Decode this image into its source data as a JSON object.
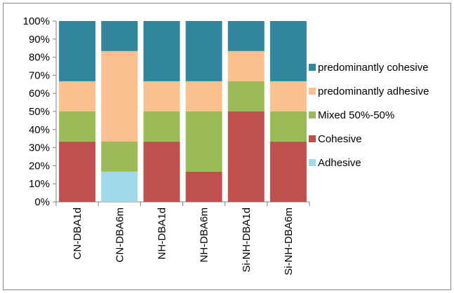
{
  "chart_data": {
    "type": "bar",
    "stacked": "percent",
    "title": "",
    "xlabel": "",
    "ylabel": "",
    "ylim": [
      0,
      100
    ],
    "yticks": [
      "0%",
      "10%",
      "20%",
      "30%",
      "40%",
      "50%",
      "60%",
      "70%",
      "80%",
      "90%",
      "100%"
    ],
    "categories": [
      "CN-DBA1d",
      "CN-DBA6m",
      "NH-DBA1d",
      "NH-DBA6m",
      "Si-NH-DBA1d",
      "Si-NH-DBA6m"
    ],
    "series": [
      {
        "name": "Adhesive",
        "color": "#9fd9ea",
        "values": [
          0,
          16.7,
          0,
          0,
          0,
          0
        ]
      },
      {
        "name": "Cohesive",
        "color": "#c0504d",
        "values": [
          33.3,
          0,
          33.3,
          16.7,
          50,
          33.3
        ]
      },
      {
        "name": "Mixed 50%-50%",
        "color": "#9bbb59",
        "values": [
          16.7,
          16.7,
          16.7,
          33.3,
          16.7,
          16.7
        ]
      },
      {
        "name": "predominantly adhesive",
        "color": "#fac090",
        "values": [
          16.7,
          50,
          16.7,
          16.7,
          16.7,
          16.7
        ]
      },
      {
        "name": "predominantly cohesive",
        "color": "#31859c",
        "values": [
          33.3,
          16.6,
          33.3,
          33.3,
          16.6,
          33.3
        ]
      }
    ],
    "legend_order": [
      "predominantly cohesive",
      "predominantly adhesive",
      "Mixed 50%-50%",
      "Cohesive",
      "Adhesive"
    ],
    "legend_position": "right",
    "grid": false
  }
}
